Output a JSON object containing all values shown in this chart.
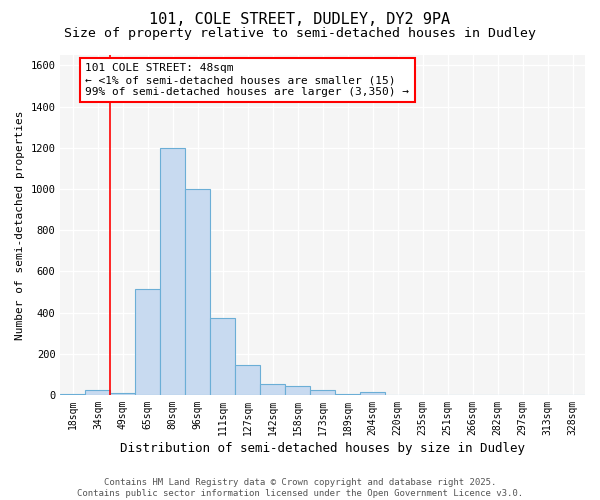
{
  "title1": "101, COLE STREET, DUDLEY, DY2 9PA",
  "title2": "Size of property relative to semi-detached houses in Dudley",
  "xlabel": "Distribution of semi-detached houses by size in Dudley",
  "ylabel": "Number of semi-detached properties",
  "categories": [
    "18sqm",
    "34sqm",
    "49sqm",
    "65sqm",
    "80sqm",
    "96sqm",
    "111sqm",
    "127sqm",
    "142sqm",
    "158sqm",
    "173sqm",
    "189sqm",
    "204sqm",
    "220sqm",
    "235sqm",
    "251sqm",
    "266sqm",
    "282sqm",
    "297sqm",
    "313sqm",
    "328sqm"
  ],
  "values": [
    5,
    25,
    10,
    515,
    1200,
    1000,
    375,
    145,
    55,
    45,
    25,
    5,
    15,
    2,
    2,
    2,
    2,
    2,
    1,
    1,
    0
  ],
  "bar_color": "#c8daf0",
  "bar_edge_color": "#6baed6",
  "red_line_index": 2,
  "annotation_line1": "101 COLE STREET: 48sqm",
  "annotation_line2": "← <1% of semi-detached houses are smaller (15)",
  "annotation_line3": "99% of semi-detached houses are larger (3,350) →",
  "footer1": "Contains HM Land Registry data © Crown copyright and database right 2025.",
  "footer2": "Contains public sector information licensed under the Open Government Licence v3.0.",
  "ylim": [
    0,
    1650
  ],
  "background_color": "#ffffff",
  "plot_background": "#f5f5f5",
  "grid_color": "#ffffff",
  "title_fontsize": 11,
  "subtitle_fontsize": 9.5,
  "xlabel_fontsize": 9,
  "ylabel_fontsize": 8,
  "tick_fontsize": 7,
  "footer_fontsize": 6.5,
  "annot_fontsize": 8
}
